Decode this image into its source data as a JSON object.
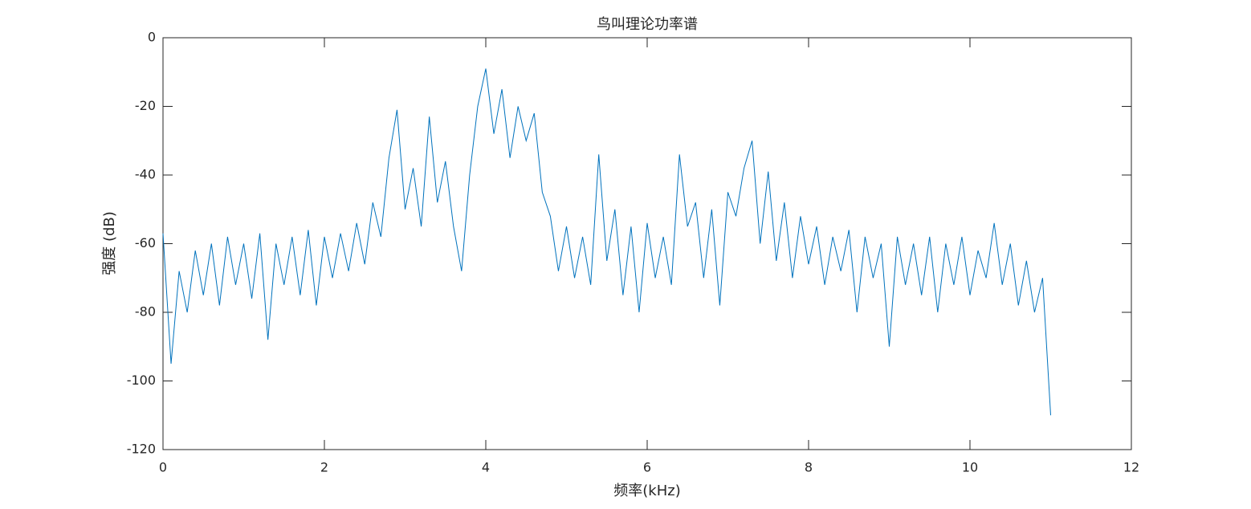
{
  "chart_data": {
    "type": "line",
    "title": "鸟叫理论功率谱",
    "xlabel": "频率(kHz)",
    "ylabel": "强度 (dB)",
    "x": [
      0,
      0.1,
      0.2,
      0.3,
      0.4,
      0.5,
      0.6,
      0.7,
      0.8,
      0.9,
      1,
      1.1,
      1.2,
      1.3,
      1.4,
      1.5,
      1.6,
      1.7,
      1.8,
      1.9,
      2,
      2.1,
      2.2,
      2.3,
      2.4,
      2.5,
      2.6,
      2.7,
      2.8,
      2.9,
      3,
      3.1,
      3.2,
      3.3,
      3.4,
      3.5,
      3.6,
      3.7,
      3.8,
      3.9,
      4,
      4.1,
      4.2,
      4.3,
      4.4,
      4.5,
      4.6,
      4.7,
      4.8,
      4.9,
      5,
      5.1,
      5.2,
      5.3,
      5.4,
      5.5,
      5.6,
      5.7,
      5.8,
      5.9,
      6,
      6.1,
      6.2,
      6.3,
      6.4,
      6.5,
      6.6,
      6.7,
      6.8,
      6.9,
      7,
      7.1,
      7.2,
      7.3,
      7.4,
      7.5,
      7.6,
      7.7,
      7.8,
      7.9,
      8,
      8.1,
      8.2,
      8.3,
      8.4,
      8.5,
      8.6,
      8.7,
      8.8,
      8.9,
      9,
      9.1,
      9.2,
      9.3,
      9.4,
      9.5,
      9.6,
      9.7,
      9.8,
      9.9,
      10,
      10.1,
      10.2,
      10.3,
      10.4,
      10.5,
      10.6,
      10.7,
      10.8,
      10.9,
      11
    ],
    "values": [
      -57,
      -95,
      -68,
      -80,
      -62,
      -75,
      -60,
      -78,
      -58,
      -72,
      -60,
      -76,
      -57,
      -88,
      -60,
      -72,
      -58,
      -75,
      -56,
      -78,
      -58,
      -70,
      -57,
      -68,
      -54,
      -66,
      -48,
      -58,
      -35,
      -21,
      -50,
      -38,
      -55,
      -23,
      -48,
      -36,
      -55,
      -68,
      -40,
      -20,
      -9,
      -28,
      -15,
      -35,
      -20,
      -30,
      -22,
      -45,
      -52,
      -68,
      -55,
      -70,
      -58,
      -72,
      -34,
      -65,
      -50,
      -75,
      -55,
      -80,
      -54,
      -70,
      -58,
      -72,
      -34,
      -55,
      -48,
      -70,
      -50,
      -78,
      -45,
      -52,
      -38,
      -30,
      -60,
      -39,
      -65,
      -48,
      -70,
      -52,
      -66,
      -55,
      -72,
      -58,
      -68,
      -56,
      -80,
      -58,
      -70,
      -60,
      -90,
      -58,
      -72,
      -60,
      -75,
      -58,
      -80,
      -60,
      -72,
      -58,
      -75,
      -62,
      -70,
      -54,
      -72,
      -60,
      -78,
      -65,
      -80,
      -70,
      -110
    ],
    "color": "#0072BD",
    "xlim": [
      0,
      12
    ],
    "xticks": [
      0,
      2,
      4,
      6,
      8,
      10,
      12
    ],
    "ylim": [
      -120,
      0
    ],
    "yticks": [
      -120,
      -100,
      -80,
      -60,
      -40,
      -20,
      0
    ]
  }
}
